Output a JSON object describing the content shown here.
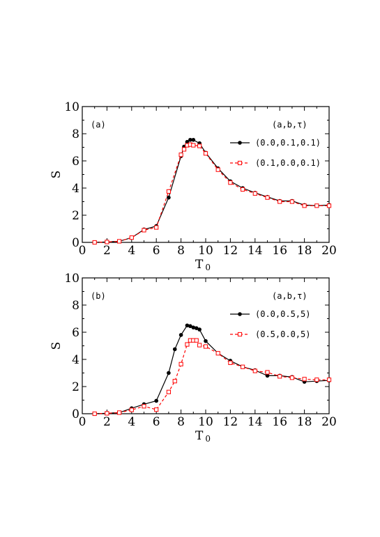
{
  "chart_data": [
    {
      "type": "line",
      "panel_label": "(a)",
      "xlabel": "T",
      "xlabel_sub": "0",
      "ylabel": "S",
      "xlim": [
        0,
        20
      ],
      "ylim": [
        0,
        10
      ],
      "xticks": [
        0,
        2,
        4,
        6,
        8,
        10,
        12,
        14,
        16,
        18,
        20
      ],
      "yticks": [
        0,
        2,
        4,
        6,
        8,
        10
      ],
      "legend_title": "(a,b,τ)",
      "legend_position": "top-right",
      "grid": false,
      "series": [
        {
          "name": "(0.0,0.1,0.1)",
          "color": "#000000",
          "line_style": "solid",
          "marker": "filled-circle",
          "x": [
            1,
            2,
            3,
            4,
            5,
            6,
            7,
            8,
            8.25,
            8.5,
            8.75,
            9,
            9.5,
            10,
            11,
            12,
            13,
            14,
            15,
            16,
            17,
            18,
            19,
            20
          ],
          "y": [
            0.0,
            0.03,
            0.08,
            0.35,
            0.95,
            1.2,
            3.3,
            6.35,
            7.05,
            7.4,
            7.55,
            7.55,
            7.3,
            6.6,
            5.45,
            4.5,
            4.0,
            3.65,
            3.35,
            3.05,
            3.05,
            2.75,
            2.7,
            2.75
          ]
        },
        {
          "name": "(0.1,0.0,0.1)",
          "color": "#ff0000",
          "line_style": "dashed",
          "marker": "open-square",
          "x": [
            1,
            2,
            3,
            4,
            5,
            6,
            7,
            8,
            8.25,
            8.5,
            8.75,
            9,
            9.5,
            10,
            11,
            12,
            13,
            14,
            15,
            16,
            17,
            18,
            19,
            20
          ],
          "y": [
            0.0,
            0.03,
            0.08,
            0.35,
            0.9,
            1.1,
            3.75,
            6.45,
            6.85,
            7.15,
            7.2,
            7.15,
            7.1,
            6.55,
            5.35,
            4.4,
            3.9,
            3.6,
            3.3,
            3.0,
            3.0,
            2.7,
            2.7,
            2.7
          ]
        }
      ]
    },
    {
      "type": "line",
      "panel_label": "(b)",
      "xlabel": "T",
      "xlabel_sub": "0",
      "ylabel": "S",
      "xlim": [
        0,
        20
      ],
      "ylim": [
        0,
        10
      ],
      "xticks": [
        0,
        2,
        4,
        6,
        8,
        10,
        12,
        14,
        16,
        18,
        20
      ],
      "yticks": [
        0,
        2,
        4,
        6,
        8,
        10
      ],
      "legend_title": "(a,b,τ)",
      "legend_position": "top-right",
      "grid": false,
      "series": [
        {
          "name": "(0.0,0.5,5)",
          "color": "#000000",
          "line_style": "solid",
          "marker": "filled-circle",
          "x": [
            1,
            2,
            3,
            4,
            5,
            6,
            7,
            7.5,
            8,
            8.5,
            8.75,
            9,
            9.25,
            9.5,
            10,
            11,
            12,
            13,
            14,
            15,
            16,
            17,
            18,
            19,
            20
          ],
          "y": [
            0.0,
            0.03,
            0.08,
            0.4,
            0.7,
            0.95,
            3.0,
            4.75,
            5.8,
            6.5,
            6.45,
            6.35,
            6.3,
            6.2,
            5.35,
            4.45,
            3.9,
            3.45,
            3.2,
            2.8,
            2.8,
            2.7,
            2.35,
            2.4,
            2.45
          ]
        },
        {
          "name": "(0.5,0.0,5)",
          "color": "#ff0000",
          "line_style": "dashed",
          "marker": "open-square",
          "x": [
            1,
            2,
            3,
            4,
            5,
            6,
            7,
            7.5,
            8,
            8.5,
            8.75,
            9,
            9.25,
            9.5,
            10,
            11,
            12,
            13,
            14,
            15,
            16,
            17,
            18,
            19,
            20
          ],
          "y": [
            0.0,
            0.03,
            0.08,
            0.28,
            0.55,
            0.3,
            1.6,
            2.4,
            3.65,
            5.1,
            5.4,
            5.4,
            5.4,
            5.05,
            4.95,
            4.45,
            3.75,
            3.45,
            3.15,
            3.05,
            2.75,
            2.65,
            2.55,
            2.5,
            2.5
          ]
        }
      ]
    }
  ]
}
